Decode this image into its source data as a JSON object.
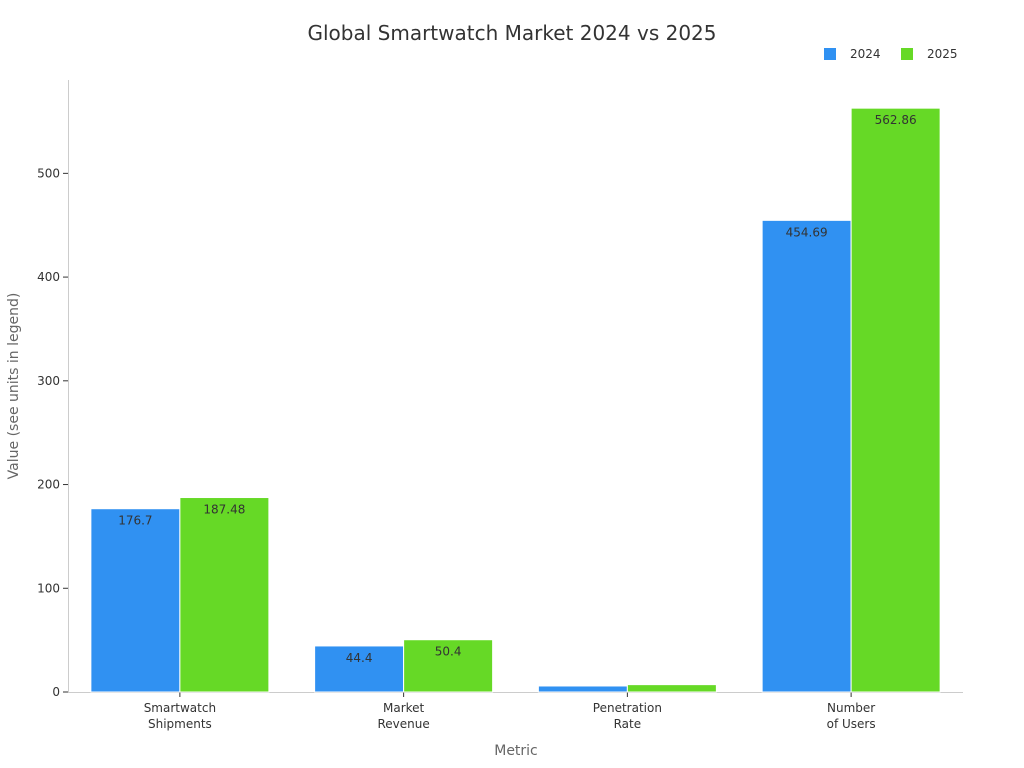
{
  "chart_data": {
    "type": "bar",
    "title": "Global Smartwatch Market 2024 vs 2025",
    "xlabel": "Metric",
    "ylabel": "Value (see units in legend)",
    "categories": [
      [
        "Smartwatch",
        "Shipments"
      ],
      [
        "Market",
        "Revenue"
      ],
      [
        "Penetration",
        "Rate"
      ],
      [
        "Number",
        "of Users"
      ]
    ],
    "series": [
      {
        "name": "2024",
        "color": "#3091f2",
        "values": [
          176.7,
          44.4,
          5.8,
          454.69
        ],
        "labels": [
          "176.7",
          "44.4",
          "",
          "454.69"
        ]
      },
      {
        "name": "2025",
        "color": "#66d926",
        "values": [
          187.48,
          50.4,
          7.1,
          562.86
        ],
        "labels": [
          "187.48",
          "50.4",
          "",
          "562.86"
        ]
      }
    ],
    "ylim": [
      0,
      590
    ],
    "yticks": [
      0,
      100,
      200,
      300,
      400,
      500
    ],
    "grid": false,
    "legend_position": "top-right"
  }
}
